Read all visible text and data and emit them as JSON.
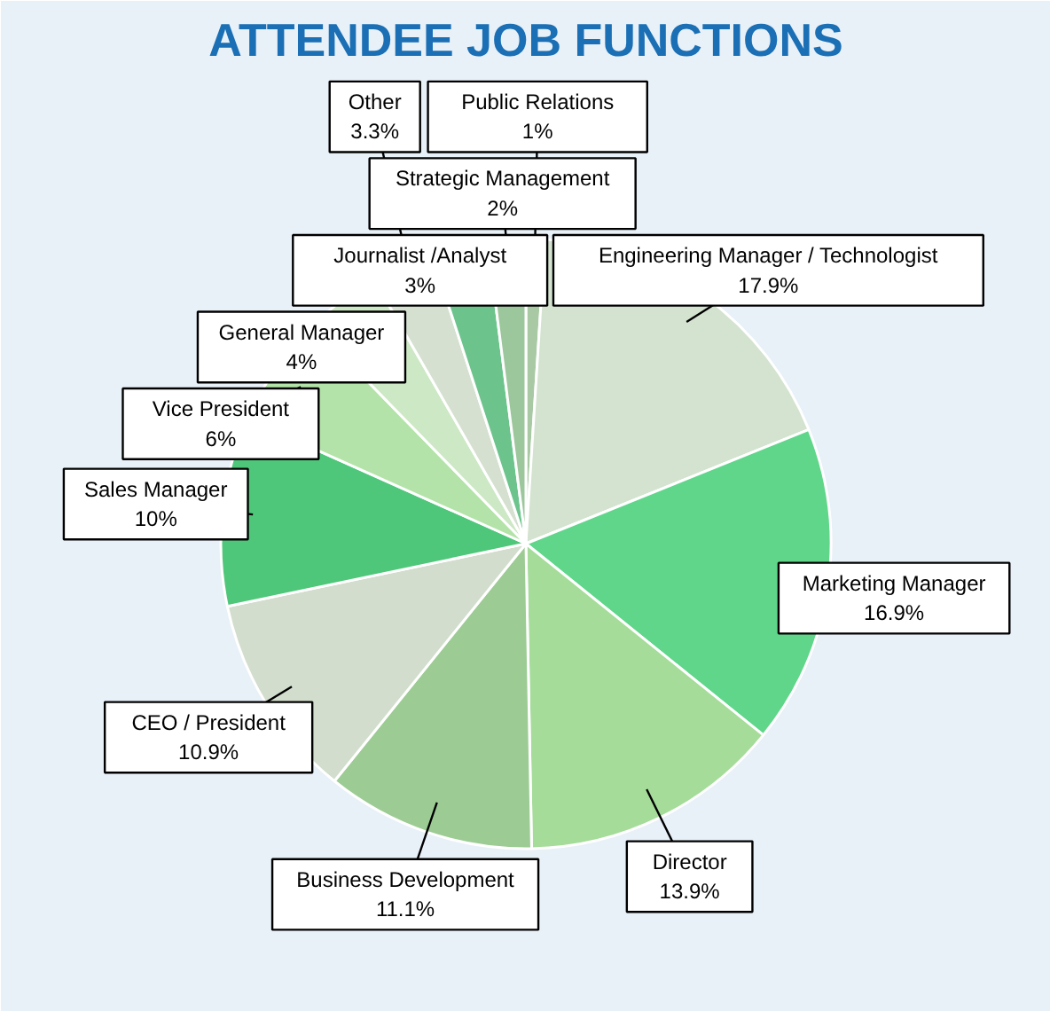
{
  "chart_data": {
    "type": "pie",
    "title": "ATTENDEE JOB FUNCTIONS",
    "categories": [
      "Public Relations",
      "Engineering Manager / Technologist",
      "Marketing Manager",
      "Director",
      "Business Development",
      "CEO / President",
      "Sales Manager",
      "Vice President",
      "General Manager",
      "Other",
      "Journalist /Analyst",
      "Strategic Management"
    ],
    "values": [
      1,
      17.9,
      16.9,
      13.9,
      11.1,
      10.9,
      10,
      6,
      4,
      3.3,
      3,
      2
    ],
    "colors": [
      "#a9c9a4",
      "#d3e3cf",
      "#5fd68a",
      "#a5dc9a",
      "#9ccc94",
      "#d2ddcd",
      "#4fc77a",
      "#b3e3a8",
      "#cde8c4",
      "#d5e0d0",
      "#6cc48c",
      "#9cc79c"
    ],
    "value_labels": [
      "1%",
      "17.9%",
      "16.9%",
      "13.9%",
      "11.1%",
      "10.9%",
      "10%",
      "6%",
      "4%",
      "3.3%",
      "3%",
      "2%"
    ]
  }
}
